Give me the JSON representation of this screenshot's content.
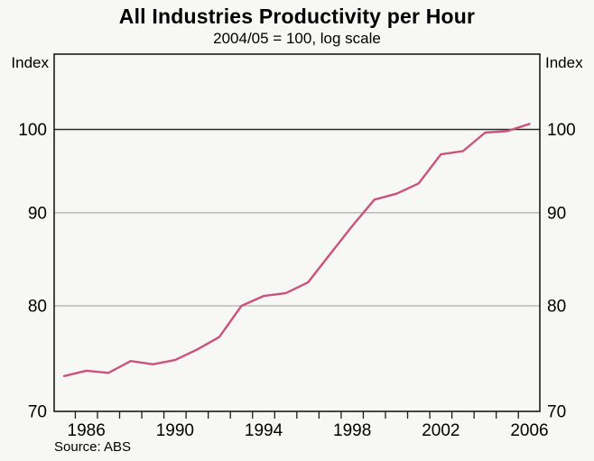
{
  "page": {
    "title": "All Industries Productivity per Hour",
    "subtitle": "2004/05 = 100, log scale",
    "index_label_left": "Index",
    "index_label_right": "Index",
    "source": "Source: ABS"
  },
  "chart_data": {
    "type": "line",
    "scale": "log",
    "title": "All Industries Productivity per Hour",
    "subtitle": "2004/05 = 100, log scale",
    "ylabel_left": "Index",
    "ylabel_right": "Index",
    "source": "Source: ABS",
    "ylim": [
      70,
      110
    ],
    "y_ticks": [
      70,
      80,
      90,
      100
    ],
    "reference_gridline": 100,
    "grid": true,
    "legend": "none",
    "x_tick_labels": [
      1986,
      1990,
      1994,
      1998,
      2002,
      2006
    ],
    "minor_tick_years_start": 1985.5,
    "minor_tick_years_end": 2005.5,
    "colors": {
      "line": "#c9537e",
      "gridline": "#9a9a9a",
      "reference_line": "#2a2a2a",
      "frame": "#1a1a1a",
      "background": "#f7f7f6"
    },
    "series": [
      {
        "name": "All industries productivity per hour",
        "color": "#c9537e",
        "x": [
          1985,
          1986,
          1987,
          1988,
          1989,
          1990,
          1991,
          1992,
          1993,
          1994,
          1995,
          1996,
          1997,
          1998,
          1999,
          2000,
          2001,
          2002,
          2003,
          2004,
          2005,
          2006
        ],
        "values": [
          73.2,
          73.7,
          73.5,
          74.6,
          74.3,
          74.7,
          75.7,
          76.9,
          80.0,
          81.0,
          81.3,
          82.4,
          85.4,
          88.5,
          91.5,
          92.2,
          93.4,
          96.9,
          97.3,
          99.6,
          99.8,
          100.7
        ]
      }
    ]
  }
}
